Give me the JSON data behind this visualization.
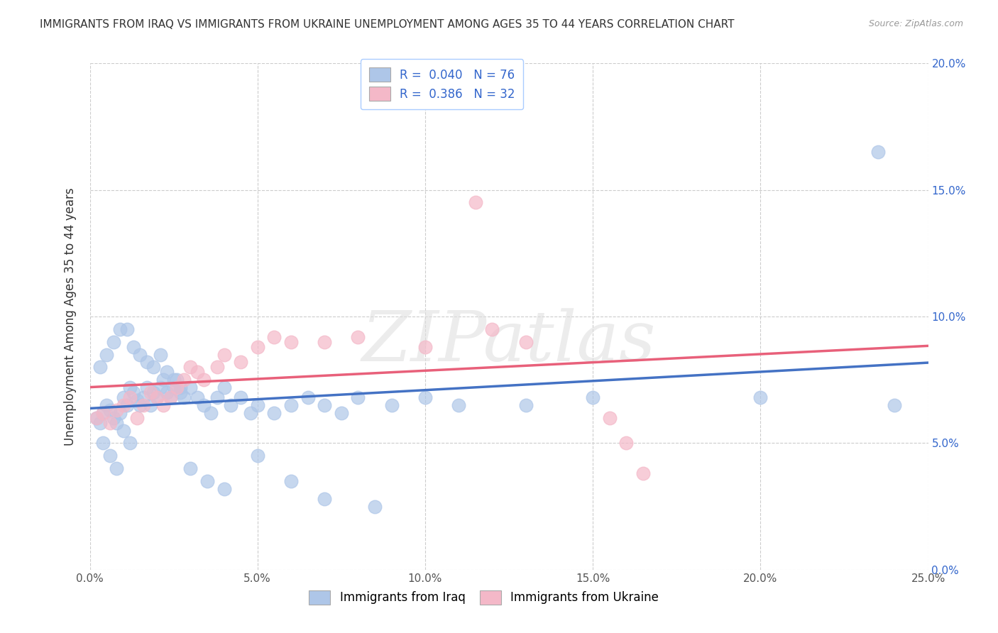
{
  "title": "IMMIGRANTS FROM IRAQ VS IMMIGRANTS FROM UKRAINE UNEMPLOYMENT AMONG AGES 35 TO 44 YEARS CORRELATION CHART",
  "source": "Source: ZipAtlas.com",
  "xlabel_bottom": [
    "Immigrants from Iraq",
    "Immigrants from Ukraine"
  ],
  "ylabel": "Unemployment Among Ages 35 to 44 years",
  "xmin": 0.0,
  "xmax": 0.25,
  "ymin": 0.0,
  "ymax": 0.2,
  "xticks": [
    0.0,
    0.05,
    0.1,
    0.15,
    0.2,
    0.25
  ],
  "xtick_labels": [
    "0.0%",
    "5.0%",
    "10.0%",
    "15.0%",
    "20.0%",
    "25.0%"
  ],
  "ytick_labels_right": [
    "0.0%",
    "5.0%",
    "10.0%",
    "15.0%",
    "20.0%"
  ],
  "yticks": [
    0.0,
    0.05,
    0.1,
    0.15,
    0.2
  ],
  "iraq_R": 0.04,
  "iraq_N": 76,
  "ukraine_R": 0.386,
  "ukraine_N": 32,
  "iraq_color": "#AEC6E8",
  "ukraine_color": "#F4B8C8",
  "iraq_line_color": "#4472C4",
  "ukraine_line_color": "#E8607A",
  "watermark_text": "ZIPatlas",
  "watermark_color": "#E0E0E0",
  "background_color": "#FFFFFF",
  "grid_color": "#CCCCCC",
  "title_color": "#333333",
  "source_color": "#999999",
  "right_tick_color": "#3366CC",
  "legend_border_color": "#AACCFF",
  "iraq_x": [
    0.002,
    0.003,
    0.004,
    0.005,
    0.006,
    0.007,
    0.008,
    0.009,
    0.01,
    0.011,
    0.012,
    0.013,
    0.014,
    0.015,
    0.016,
    0.017,
    0.018,
    0.019,
    0.02,
    0.021,
    0.022,
    0.023,
    0.024,
    0.025,
    0.026,
    0.027,
    0.028,
    0.03,
    0.032,
    0.034,
    0.036,
    0.038,
    0.04,
    0.042,
    0.045,
    0.048,
    0.05,
    0.055,
    0.06,
    0.065,
    0.07,
    0.075,
    0.08,
    0.09,
    0.1,
    0.11,
    0.13,
    0.15,
    0.2,
    0.235,
    0.003,
    0.005,
    0.007,
    0.009,
    0.011,
    0.013,
    0.015,
    0.017,
    0.019,
    0.021,
    0.023,
    0.025,
    0.027,
    0.03,
    0.035,
    0.04,
    0.05,
    0.06,
    0.07,
    0.085,
    0.004,
    0.006,
    0.008,
    0.01,
    0.012,
    0.24
  ],
  "iraq_y": [
    0.06,
    0.058,
    0.062,
    0.065,
    0.063,
    0.06,
    0.058,
    0.062,
    0.068,
    0.065,
    0.072,
    0.07,
    0.067,
    0.065,
    0.068,
    0.072,
    0.065,
    0.07,
    0.068,
    0.072,
    0.075,
    0.07,
    0.068,
    0.072,
    0.075,
    0.07,
    0.068,
    0.072,
    0.068,
    0.065,
    0.062,
    0.068,
    0.072,
    0.065,
    0.068,
    0.062,
    0.065,
    0.062,
    0.065,
    0.068,
    0.065,
    0.062,
    0.068,
    0.065,
    0.068,
    0.065,
    0.065,
    0.068,
    0.068,
    0.165,
    0.08,
    0.085,
    0.09,
    0.095,
    0.095,
    0.088,
    0.085,
    0.082,
    0.08,
    0.085,
    0.078,
    0.075,
    0.072,
    0.04,
    0.035,
    0.032,
    0.045,
    0.035,
    0.028,
    0.025,
    0.05,
    0.045,
    0.04,
    0.055,
    0.05,
    0.065
  ],
  "ukraine_x": [
    0.002,
    0.004,
    0.006,
    0.008,
    0.01,
    0.012,
    0.014,
    0.016,
    0.018,
    0.02,
    0.022,
    0.024,
    0.026,
    0.028,
    0.03,
    0.032,
    0.034,
    0.038,
    0.04,
    0.045,
    0.05,
    0.055,
    0.06,
    0.07,
    0.08,
    0.1,
    0.12,
    0.155,
    0.16,
    0.165,
    0.115,
    0.13
  ],
  "ukraine_y": [
    0.06,
    0.062,
    0.058,
    0.063,
    0.065,
    0.068,
    0.06,
    0.065,
    0.07,
    0.068,
    0.065,
    0.068,
    0.072,
    0.075,
    0.08,
    0.078,
    0.075,
    0.08,
    0.085,
    0.082,
    0.088,
    0.092,
    0.09,
    0.09,
    0.092,
    0.088,
    0.095,
    0.06,
    0.05,
    0.038,
    0.145,
    0.09
  ]
}
